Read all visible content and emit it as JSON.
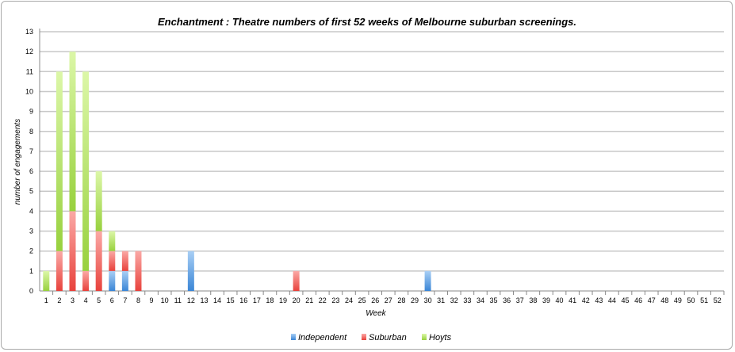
{
  "chart_data": {
    "type": "bar",
    "stacked": true,
    "title": "Enchantment : Theatre numbers of first 52 weeks of Melbourne suburban screenings.",
    "xlabel": "Week",
    "ylabel": "number of engagements",
    "ylim": [
      0,
      13
    ],
    "grid": true,
    "legend_position": "bottom",
    "categories": [
      "1",
      "2",
      "3",
      "4",
      "5",
      "6",
      "7",
      "8",
      "9",
      "10",
      "11",
      "12",
      "13",
      "14",
      "15",
      "16",
      "17",
      "18",
      "19",
      "20",
      "21",
      "22",
      "23",
      "24",
      "25",
      "26",
      "27",
      "28",
      "29",
      "30",
      "31",
      "32",
      "33",
      "34",
      "35",
      "36",
      "37",
      "38",
      "39",
      "40",
      "41",
      "42",
      "43",
      "44",
      "45",
      "46",
      "47",
      "48",
      "49",
      "50",
      "51",
      "52"
    ],
    "series": [
      {
        "name": "Independent",
        "color": "#4a90d9",
        "values": [
          0,
          0,
          0,
          0,
          0,
          1,
          1,
          0,
          0,
          0,
          0,
          2,
          0,
          0,
          0,
          0,
          0,
          0,
          0,
          0,
          0,
          0,
          0,
          0,
          0,
          0,
          0,
          0,
          0,
          1,
          0,
          0,
          0,
          0,
          0,
          0,
          0,
          0,
          0,
          0,
          0,
          0,
          0,
          0,
          0,
          0,
          0,
          0,
          0,
          0,
          0,
          0
        ]
      },
      {
        "name": "Suburban",
        "color": "#e8423c",
        "values": [
          0,
          2,
          4,
          1,
          3,
          1,
          1,
          2,
          0,
          0,
          0,
          0,
          0,
          0,
          0,
          0,
          0,
          0,
          0,
          1,
          0,
          0,
          0,
          0,
          0,
          0,
          0,
          0,
          0,
          0,
          0,
          0,
          0,
          0,
          0,
          0,
          0,
          0,
          0,
          0,
          0,
          0,
          0,
          0,
          0,
          0,
          0,
          0,
          0,
          0,
          0,
          0
        ]
      },
      {
        "name": "Hoyts",
        "color": "#9ed64a",
        "values": [
          1,
          9,
          8,
          10,
          3,
          1,
          0,
          0,
          0,
          0,
          0,
          0,
          0,
          0,
          0,
          0,
          0,
          0,
          0,
          0,
          0,
          0,
          0,
          0,
          0,
          0,
          0,
          0,
          0,
          0,
          0,
          0,
          0,
          0,
          0,
          0,
          0,
          0,
          0,
          0,
          0,
          0,
          0,
          0,
          0,
          0,
          0,
          0,
          0,
          0,
          0,
          0
        ]
      }
    ]
  }
}
